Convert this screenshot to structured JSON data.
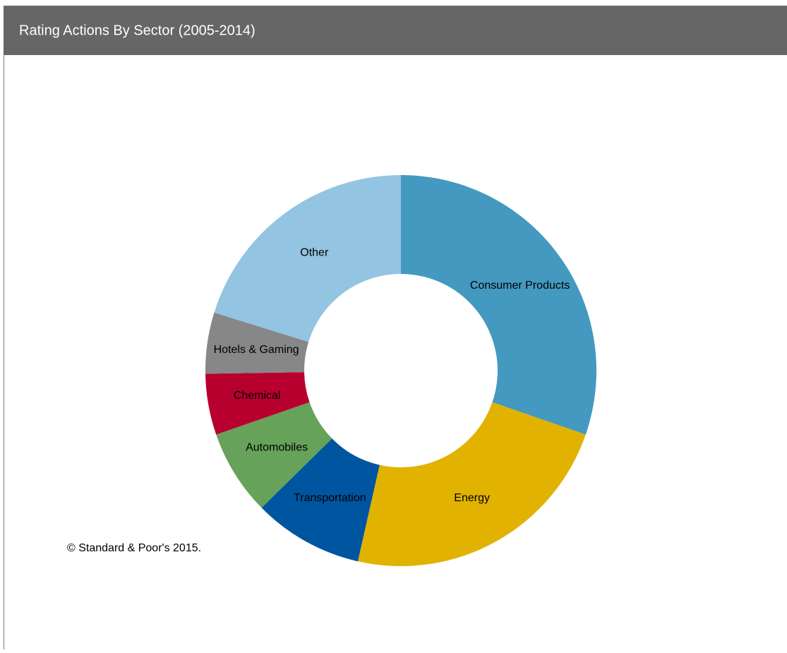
{
  "chart_data": {
    "type": "donut",
    "title": "Rating Actions  By  Sector (2005-2014)",
    "categories": [
      "Consumer Products",
      "Energy",
      "Transportation",
      "Automobiles",
      "Chemical",
      "Hotels & Gaming",
      "Other"
    ],
    "values": [
      30,
      23,
      9,
      7,
      5,
      5,
      20
    ],
    "colors": [
      "#4399c0",
      "#e2b200",
      "#0055a0",
      "#66a25a",
      "#b8002f",
      "#878787",
      "#93c4e2"
    ],
    "source": "© Standard & Poor's 2015."
  }
}
